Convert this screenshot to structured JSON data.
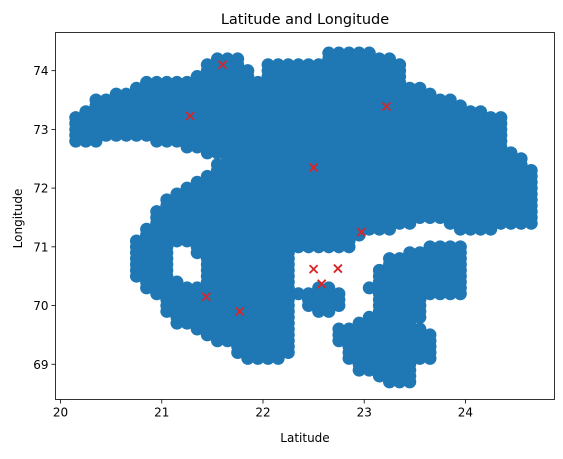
{
  "chart_data": {
    "type": "scatter",
    "title": "Latitude and Longitude",
    "xlabel": "Latitude",
    "ylabel": "Longitude",
    "xlim": [
      19.95,
      24.88
    ],
    "ylim": [
      68.4,
      74.65
    ],
    "xticks": [
      20,
      21,
      22,
      23,
      24
    ],
    "yticks": [
      69,
      70,
      71,
      72,
      73,
      74
    ],
    "xtick_labels": [
      "20",
      "21",
      "22",
      "23",
      "24"
    ],
    "ytick_labels": [
      "69",
      "70",
      "71",
      "72",
      "73",
      "74"
    ],
    "grid": false,
    "legend": "none",
    "series": [
      {
        "marker": "circle",
        "color": "#1f77b4",
        "grid_step": [
          0.1,
          0.1
        ],
        "regions": [
          {
            "x": [
              20.15,
              24.7
            ],
            "y": [
              68.7,
              74.35
            ]
          }
        ],
        "polygons": [
          [
            [
              20.15,
              73.2
            ],
            [
              20.35,
              73.5
            ],
            [
              20.75,
              73.7
            ],
            [
              20.85,
              73.85
            ],
            [
              21.3,
              73.9
            ],
            [
              21.45,
              74.1
            ],
            [
              21.6,
              74.3
            ],
            [
              21.8,
              74.25
            ],
            [
              21.9,
              73.9
            ],
            [
              22.05,
              73.9
            ],
            [
              22.05,
              74.15
            ],
            [
              22.2,
              74.2
            ],
            [
              22.6,
              74.2
            ],
            [
              22.65,
              74.45
            ],
            [
              22.95,
              74.45
            ],
            [
              23.1,
              74.3
            ],
            [
              23.35,
              74.2
            ],
            [
              23.45,
              73.8
            ],
            [
              23.75,
              73.6
            ],
            [
              24.0,
              73.4
            ],
            [
              24.4,
              73.2
            ],
            [
              24.45,
              72.7
            ],
            [
              24.65,
              72.35
            ],
            [
              24.7,
              71.4
            ],
            [
              24.3,
              71.3
            ],
            [
              23.9,
              71.3
            ],
            [
              23.7,
              71.5
            ],
            [
              23.3,
              71.3
            ],
            [
              23.0,
              71.2
            ],
            [
              22.9,
              71.0
            ],
            [
              22.55,
              70.9
            ],
            [
              22.35,
              71.0
            ],
            [
              22.3,
              70.5
            ],
            [
              22.4,
              70.0
            ],
            [
              22.7,
              69.8
            ],
            [
              22.85,
              70.2
            ],
            [
              22.55,
              70.4
            ],
            [
              22.35,
              70.1
            ],
            [
              22.35,
              69.3
            ],
            [
              22.1,
              69.0
            ],
            [
              21.85,
              69.1
            ],
            [
              21.45,
              69.5
            ],
            [
              21.15,
              69.7
            ],
            [
              20.75,
              70.5
            ],
            [
              20.7,
              71.1
            ],
            [
              20.95,
              71.6
            ],
            [
              21.1,
              71.9
            ],
            [
              21.4,
              72.2
            ],
            [
              21.6,
              72.5
            ],
            [
              21.3,
              72.65
            ],
            [
              20.9,
              72.8
            ],
            [
              20.55,
              72.85
            ],
            [
              20.3,
              72.75
            ],
            [
              20.15,
              72.75
            ]
          ],
          [
            [
              22.7,
              69.6
            ],
            [
              22.8,
              69.15
            ],
            [
              22.95,
              68.9
            ],
            [
              23.15,
              68.75
            ],
            [
              23.35,
              68.65
            ],
            [
              23.5,
              68.7
            ],
            [
              23.55,
              69.05
            ],
            [
              23.7,
              69.1
            ],
            [
              23.7,
              69.4
            ],
            [
              23.55,
              69.7
            ],
            [
              23.6,
              70.1
            ],
            [
              23.75,
              70.2
            ],
            [
              23.95,
              70.15
            ],
            [
              24.0,
              70.7
            ],
            [
              23.95,
              71.05
            ],
            [
              23.7,
              71.05
            ],
            [
              23.25,
              70.85
            ],
            [
              23.05,
              70.35
            ],
            [
              22.95,
              70.2
            ],
            [
              22.9,
              69.7
            ]
          ],
          [
            [
              23.7,
              68.8
            ],
            [
              23.75,
              68.7
            ],
            [
              23.72,
              68.68
            ]
          ]
        ],
        "holes": [
          [
            [
              21.05,
              70.95
            ],
            [
              21.25,
              71.05
            ],
            [
              21.4,
              70.8
            ],
            [
              21.4,
              70.4
            ],
            [
              21.2,
              70.35
            ],
            [
              21.1,
              70.6
            ]
          ],
          [
            [
              22.8,
              70.4
            ],
            [
              23.0,
              70.45
            ],
            [
              23.1,
              70.1
            ],
            [
              23.05,
              69.8
            ],
            [
              22.85,
              69.7
            ],
            [
              22.75,
              69.95
            ]
          ]
        ]
      },
      {
        "marker": "x",
        "color": "#d62728",
        "points": [
          {
            "x": 21.6,
            "y": 74.1
          },
          {
            "x": 21.28,
            "y": 73.23
          },
          {
            "x": 23.22,
            "y": 73.39
          },
          {
            "x": 22.5,
            "y": 72.35
          },
          {
            "x": 22.97,
            "y": 71.25
          },
          {
            "x": 22.5,
            "y": 70.62
          },
          {
            "x": 22.74,
            "y": 70.63
          },
          {
            "x": 22.58,
            "y": 70.37
          },
          {
            "x": 21.44,
            "y": 70.15
          },
          {
            "x": 21.77,
            "y": 69.9
          }
        ]
      }
    ]
  }
}
